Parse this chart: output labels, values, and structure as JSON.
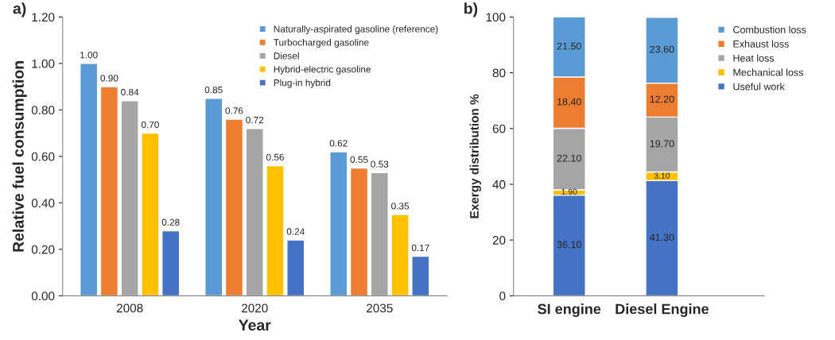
{
  "chart_data": [
    {
      "type": "bar",
      "title": "a)",
      "xlabel": "Year",
      "ylabel": "Relative fuel consumption",
      "categories": [
        "2008",
        "2020",
        "2035"
      ],
      "series": [
        {
          "name": "Naturally-aspirated gasoline (reference)",
          "color": "#5b9bd5",
          "values": [
            1.0,
            0.85,
            0.62
          ],
          "value_labels": [
            "1.00",
            "0.85",
            "0.62"
          ]
        },
        {
          "name": "Turbocharged gasoline",
          "color": "#ed7d31",
          "values": [
            0.9,
            0.76,
            0.55
          ],
          "value_labels": [
            "0.90",
            "0.76",
            "0.55"
          ]
        },
        {
          "name": "Diesel",
          "color": "#a5a5a5",
          "values": [
            0.84,
            0.72,
            0.53
          ],
          "value_labels": [
            "0.84",
            "0.72",
            "0.53"
          ]
        },
        {
          "name": "Hybrid-electric gasoline",
          "color": "#ffc000",
          "values": [
            0.7,
            0.56,
            0.35
          ],
          "value_labels": [
            "0.70",
            "0.56",
            "0.35"
          ]
        },
        {
          "name": "Plug-in hybrid",
          "color": "#4472c4",
          "values": [
            0.28,
            0.24,
            0.17
          ],
          "value_labels": [
            "0.28",
            "0.24",
            "0.17"
          ]
        }
      ],
      "ylim": [
        0,
        1.2
      ],
      "yticks": [
        {
          "value": 0,
          "label": "0.00"
        },
        {
          "value": 0.2,
          "label": "0.20"
        },
        {
          "value": 0.4,
          "label": "0.40"
        },
        {
          "value": 0.6,
          "label": "0.60"
        },
        {
          "value": 0.8,
          "label": "0.80"
        },
        {
          "value": 1.0,
          "label": "1.00"
        },
        {
          "value": 1.2,
          "label": "1.20"
        }
      ],
      "legend": "top right",
      "grid": false
    },
    {
      "type": "bar",
      "title": "b)",
      "ylabel": "Exergy distribution %",
      "categories": [
        "SI engine",
        "Diesel Engine"
      ],
      "stacked": true,
      "series": [
        {
          "name": "Useful work",
          "color": "#4472c4",
          "values": [
            36.1,
            41.3
          ],
          "value_labels": [
            "36.10",
            "41.30"
          ]
        },
        {
          "name": "Mechanical loss",
          "color": "#ffc000",
          "values": [
            1.9,
            3.1
          ],
          "value_labels": [
            "1.90",
            "3.10"
          ]
        },
        {
          "name": "Heat loss",
          "color": "#a5a5a5",
          "values": [
            22.1,
            19.7
          ],
          "value_labels": [
            "22.10",
            "19.70"
          ]
        },
        {
          "name": "Exhaust loss",
          "color": "#ed7d31",
          "values": [
            18.4,
            12.2
          ],
          "value_labels": [
            "18.40",
            "12.20"
          ]
        },
        {
          "name": "Combustion loss",
          "color": "#5b9bd5",
          "values": [
            21.5,
            23.6
          ],
          "value_labels": [
            "21.50",
            "23.60"
          ]
        }
      ],
      "ylim": [
        0,
        100
      ],
      "yticks": [
        0,
        20,
        40,
        60,
        80,
        100
      ],
      "legend": "top right",
      "grid": false
    }
  ]
}
